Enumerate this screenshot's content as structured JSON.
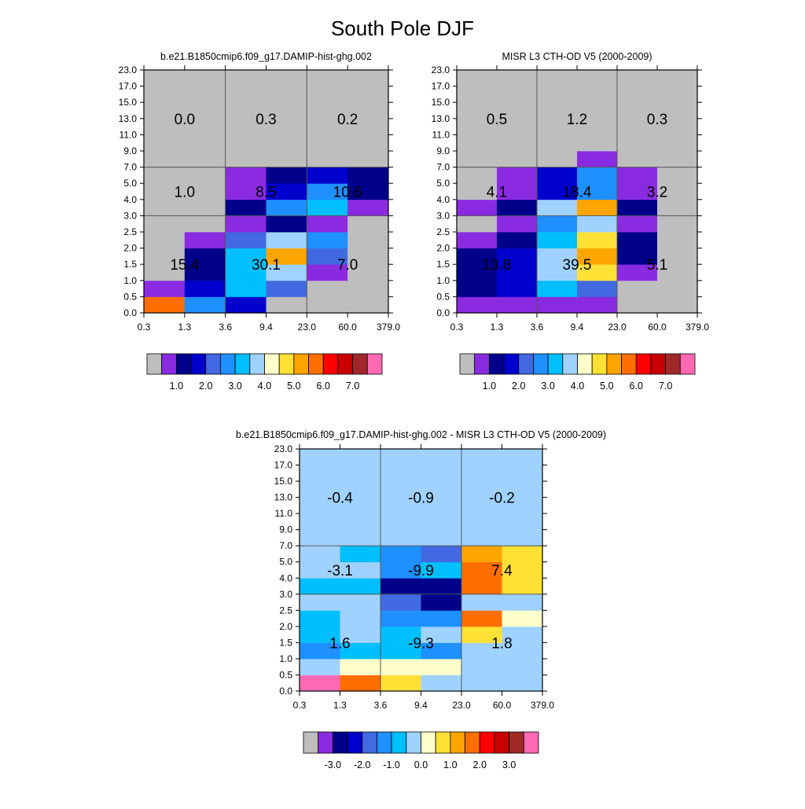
{
  "title": "South Pole DJF",
  "colors": {
    "missing": "#bebebe",
    "model_palette": [
      "#bebebe",
      "#8a2be2",
      "#00008b",
      "#0000cd",
      "#4169e1",
      "#1e90ff",
      "#00bfff",
      "#a0d2ff",
      "#ffffcc",
      "#ffe135",
      "#ffa500",
      "#ff6e00",
      "#ff0000",
      "#c80000",
      "#a02828",
      "#ff69b4"
    ],
    "diff_palette": [
      "#bebebe",
      "#8a2be2",
      "#00008b",
      "#0000cd",
      "#4169e1",
      "#1e90ff",
      "#00bfff",
      "#a0d2ff",
      "#ffffcc",
      "#ffe135",
      "#ffa500",
      "#ff6e00",
      "#ff0000",
      "#c80000",
      "#a02828",
      "#ff69b4"
    ]
  },
  "chart_data": [
    {
      "type": "heatmap",
      "title": "b.e21.B1850cmip6.f09_g17.DAMIP-hist-ghg.002",
      "x_ticks": [
        "0.3",
        "1.3",
        "3.6",
        "9.4",
        "23.0",
        "60.0",
        "379.0"
      ],
      "y_ticks": [
        "0.0",
        "0.5",
        "1.0",
        "1.5",
        "2.0",
        "2.5",
        "3.0",
        "4.0",
        "5.0",
        "7.0",
        "9.0",
        "11.0",
        "13.0",
        "15.0",
        "17.0",
        "23.0"
      ],
      "cells_bottom_to_top": [
        [
          "#ff6e00",
          "#1e90ff",
          "#0000cd",
          "#bebebe",
          "#bebebe",
          "#bebebe"
        ],
        [
          "#8a2be2",
          "#0000cd",
          "#00bfff",
          "#4169e1",
          "#bebebe",
          "#bebebe"
        ],
        [
          "#bebebe",
          "#00008b",
          "#00bfff",
          "#a0d2ff",
          "#8a2be2",
          "#bebebe"
        ],
        [
          "#bebebe",
          "#00008b",
          "#00bfff",
          "#ffa500",
          "#4169e1",
          "#bebebe"
        ],
        [
          "#bebebe",
          "#8a2be2",
          "#4169e1",
          "#a0d2ff",
          "#1e90ff",
          "#bebebe"
        ],
        [
          "#bebebe",
          "#bebebe",
          "#8a2be2",
          "#00008b",
          "#8a2be2",
          "#bebebe"
        ],
        [
          "#bebebe",
          "#bebebe",
          "#00008b",
          "#1e90ff",
          "#00bfff",
          "#8a2be2"
        ],
        [
          "#bebebe",
          "#bebebe",
          "#8a2be2",
          "#0000cd",
          "#1e90ff",
          "#00008b"
        ],
        [
          "#bebebe",
          "#bebebe",
          "#8a2be2",
          "#00008b",
          "#0000cd",
          "#00008b"
        ],
        [
          "#bebebe",
          "#bebebe",
          "#bebebe",
          "#bebebe",
          "#bebebe",
          "#bebebe"
        ],
        [
          "#bebebe",
          "#bebebe",
          "#bebebe",
          "#bebebe",
          "#bebebe",
          "#bebebe"
        ],
        [
          "#bebebe",
          "#bebebe",
          "#bebebe",
          "#bebebe",
          "#bebebe",
          "#bebebe"
        ],
        [
          "#bebebe",
          "#bebebe",
          "#bebebe",
          "#bebebe",
          "#bebebe",
          "#bebebe"
        ],
        [
          "#bebebe",
          "#bebebe",
          "#bebebe",
          "#bebebe",
          "#bebebe",
          "#bebebe"
        ],
        [
          "#bebebe",
          "#bebebe",
          "#bebebe",
          "#bebebe",
          "#bebebe",
          "#bebebe"
        ]
      ],
      "region_labels": [
        "0.0",
        "0.3",
        "0.2",
        "1.0",
        "8.5",
        "10.6",
        "15.4",
        "30.1",
        "7.0"
      ],
      "colorbar_labels": [
        "1.0",
        "2.0",
        "3.0",
        "4.0",
        "5.0",
        "6.0",
        "7.0"
      ]
    },
    {
      "type": "heatmap",
      "title": "MISR L3 CTH-OD V5 (2000-2009)",
      "x_ticks": [
        "0.3",
        "1.3",
        "3.6",
        "9.4",
        "23.0",
        "60.0",
        "379.0"
      ],
      "y_ticks": [
        "0.0",
        "0.5",
        "1.0",
        "1.5",
        "2.0",
        "2.5",
        "3.0",
        "4.0",
        "5.0",
        "7.0",
        "9.0",
        "11.0",
        "13.0",
        "15.0",
        "17.0",
        "23.0"
      ],
      "cells_bottom_to_top": [
        [
          "#8a2be2",
          "#8a2be2",
          "#8a2be2",
          "#8a2be2",
          "#bebebe",
          "#bebebe"
        ],
        [
          "#00008b",
          "#0000cd",
          "#00bfff",
          "#4169e1",
          "#bebebe",
          "#bebebe"
        ],
        [
          "#00008b",
          "#0000cd",
          "#a0d2ff",
          "#ffe135",
          "#8a2be2",
          "#bebebe"
        ],
        [
          "#00008b",
          "#0000cd",
          "#a0d2ff",
          "#ffa500",
          "#00008b",
          "#bebebe"
        ],
        [
          "#8a2be2",
          "#00008b",
          "#00bfff",
          "#ffe135",
          "#00008b",
          "#bebebe"
        ],
        [
          "#bebebe",
          "#8a2be2",
          "#1e90ff",
          "#a0d2ff",
          "#8a2be2",
          "#bebebe"
        ],
        [
          "#8a2be2",
          "#00008b",
          "#a0d2ff",
          "#ffa500",
          "#00008b",
          "#bebebe"
        ],
        [
          "#bebebe",
          "#8a2be2",
          "#0000cd",
          "#1e90ff",
          "#8a2be2",
          "#bebebe"
        ],
        [
          "#bebebe",
          "#8a2be2",
          "#0000cd",
          "#1e90ff",
          "#8a2be2",
          "#bebebe"
        ],
        [
          "#bebebe",
          "#bebebe",
          "#bebebe",
          "#8a2be2",
          "#bebebe",
          "#bebebe"
        ],
        [
          "#bebebe",
          "#bebebe",
          "#bebebe",
          "#bebebe",
          "#bebebe",
          "#bebebe"
        ],
        [
          "#bebebe",
          "#bebebe",
          "#bebebe",
          "#bebebe",
          "#bebebe",
          "#bebebe"
        ],
        [
          "#bebebe",
          "#bebebe",
          "#bebebe",
          "#bebebe",
          "#bebebe",
          "#bebebe"
        ],
        [
          "#bebebe",
          "#bebebe",
          "#bebebe",
          "#bebebe",
          "#bebebe",
          "#bebebe"
        ],
        [
          "#bebebe",
          "#bebebe",
          "#bebebe",
          "#bebebe",
          "#bebebe",
          "#bebebe"
        ]
      ],
      "region_labels": [
        "0.5",
        "1.2",
        "0.3",
        "4.1",
        "18.4",
        "3.2",
        "13.8",
        "39.5",
        "5.1"
      ],
      "colorbar_labels": [
        "1.0",
        "2.0",
        "3.0",
        "4.0",
        "5.0",
        "6.0",
        "7.0"
      ]
    },
    {
      "type": "heatmap",
      "title": "b.e21.B1850cmip6.f09_g17.DAMIP-hist-ghg.002 - MISR L3 CTH-OD V5 (2000-2009)",
      "x_ticks": [
        "0.3",
        "1.3",
        "3.6",
        "9.4",
        "23.0",
        "60.0",
        "379.0"
      ],
      "y_ticks": [
        "0.0",
        "0.5",
        "1.0",
        "1.5",
        "2.0",
        "2.5",
        "3.0",
        "4.0",
        "5.0",
        "7.0",
        "9.0",
        "11.0",
        "13.0",
        "15.0",
        "17.0",
        "23.0"
      ],
      "cells_bottom_to_top": [
        [
          "#ff69b4",
          "#ff6e00",
          "#ffe135",
          "#a0d2ff",
          "#a0d2ff",
          "#a0d2ff"
        ],
        [
          "#a0d2ff",
          "#ffffcc",
          "#ffffcc",
          "#ffffcc",
          "#a0d2ff",
          "#a0d2ff"
        ],
        [
          "#1e90ff",
          "#00bfff",
          "#00bfff",
          "#1e90ff",
          "#a0d2ff",
          "#a0d2ff"
        ],
        [
          "#00bfff",
          "#a0d2ff",
          "#00bfff",
          "#a0d2ff",
          "#ffe135",
          "#a0d2ff"
        ],
        [
          "#00bfff",
          "#a0d2ff",
          "#1e90ff",
          "#1e90ff",
          "#ff6e00",
          "#ffffcc"
        ],
        [
          "#a0d2ff",
          "#a0d2ff",
          "#4169e1",
          "#00008b",
          "#a0d2ff",
          "#a0d2ff"
        ],
        [
          "#00bfff",
          "#00bfff",
          "#00008b",
          "#00008b",
          "#ff6e00",
          "#ffe135"
        ],
        [
          "#a0d2ff",
          "#a0d2ff",
          "#1e90ff",
          "#00bfff",
          "#ff6e00",
          "#ffe135"
        ],
        [
          "#a0d2ff",
          "#00bfff",
          "#1e90ff",
          "#4169e1",
          "#ffa500",
          "#ffe135"
        ],
        [
          "#a0d2ff",
          "#a0d2ff",
          "#a0d2ff",
          "#a0d2ff",
          "#a0d2ff",
          "#a0d2ff"
        ],
        [
          "#a0d2ff",
          "#a0d2ff",
          "#a0d2ff",
          "#a0d2ff",
          "#a0d2ff",
          "#a0d2ff"
        ],
        [
          "#a0d2ff",
          "#a0d2ff",
          "#a0d2ff",
          "#a0d2ff",
          "#a0d2ff",
          "#a0d2ff"
        ],
        [
          "#a0d2ff",
          "#a0d2ff",
          "#a0d2ff",
          "#a0d2ff",
          "#a0d2ff",
          "#a0d2ff"
        ],
        [
          "#a0d2ff",
          "#a0d2ff",
          "#a0d2ff",
          "#a0d2ff",
          "#a0d2ff",
          "#a0d2ff"
        ],
        [
          "#a0d2ff",
          "#a0d2ff",
          "#a0d2ff",
          "#a0d2ff",
          "#a0d2ff",
          "#a0d2ff"
        ]
      ],
      "region_labels": [
        "-0.4",
        "-0.9",
        "-0.2",
        "-3.1",
        "-9.9",
        "7.4",
        "1.6",
        "-9.3",
        "1.8"
      ],
      "colorbar_labels": [
        "-3.0",
        "-2.0",
        "-1.0",
        "0.0",
        "1.0",
        "2.0",
        "3.0"
      ]
    }
  ]
}
